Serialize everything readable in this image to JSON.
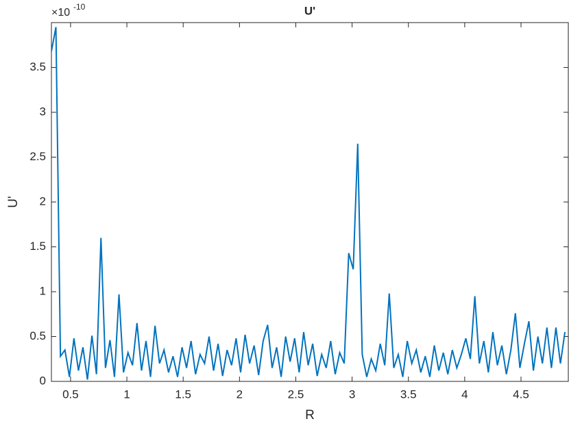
{
  "chart_data": {
    "type": "line",
    "title": "U'",
    "xlabel": "R",
    "ylabel": "U'",
    "y_exponent_base": "×10",
    "y_exponent": "-10",
    "x": [
      0.33,
      0.37,
      0.41,
      0.45,
      0.49,
      0.53,
      0.57,
      0.61,
      0.65,
      0.69,
      0.73,
      0.77,
      0.81,
      0.85,
      0.89,
      0.93,
      0.97,
      1.01,
      1.05,
      1.09,
      1.13,
      1.17,
      1.21,
      1.25,
      1.29,
      1.33,
      1.37,
      1.41,
      1.45,
      1.49,
      1.53,
      1.57,
      1.61,
      1.65,
      1.69,
      1.73,
      1.77,
      1.81,
      1.85,
      1.89,
      1.93,
      1.97,
      2.01,
      2.05,
      2.09,
      2.13,
      2.17,
      2.21,
      2.25,
      2.29,
      2.33,
      2.37,
      2.41,
      2.45,
      2.49,
      2.53,
      2.57,
      2.61,
      2.65,
      2.69,
      2.73,
      2.77,
      2.81,
      2.85,
      2.89,
      2.93,
      2.97,
      3.01,
      3.05,
      3.09,
      3.13,
      3.17,
      3.21,
      3.25,
      3.29,
      3.33,
      3.37,
      3.41,
      3.45,
      3.49,
      3.53,
      3.57,
      3.61,
      3.65,
      3.69,
      3.73,
      3.77,
      3.81,
      3.85,
      3.89,
      3.93,
      3.97,
      4.01,
      4.05,
      4.09,
      4.13,
      4.17,
      4.21,
      4.25,
      4.29,
      4.33,
      4.37,
      4.41,
      4.45,
      4.49,
      4.53,
      4.57,
      4.61,
      4.65,
      4.69,
      4.73,
      4.77,
      4.81,
      4.85,
      4.89
    ],
    "series": [
      {
        "name": "U'",
        "color": "#0072bd",
        "values": [
          3.68,
          3.95,
          0.28,
          0.35,
          0.05,
          0.48,
          0.12,
          0.38,
          0.02,
          0.51,
          0.08,
          1.6,
          0.15,
          0.46,
          0.05,
          0.97,
          0.1,
          0.32,
          0.18,
          0.65,
          0.12,
          0.45,
          0.05,
          0.62,
          0.2,
          0.35,
          0.1,
          0.28,
          0.05,
          0.38,
          0.15,
          0.45,
          0.08,
          0.3,
          0.2,
          0.5,
          0.12,
          0.42,
          0.06,
          0.35,
          0.18,
          0.48,
          0.1,
          0.52,
          0.2,
          0.4,
          0.07,
          0.45,
          0.63,
          0.15,
          0.38,
          0.05,
          0.5,
          0.22,
          0.48,
          0.1,
          0.55,
          0.18,
          0.42,
          0.06,
          0.3,
          0.15,
          0.45,
          0.08,
          0.32,
          0.2,
          1.43,
          1.25,
          2.65,
          0.3,
          0.05,
          0.25,
          0.12,
          0.42,
          0.18,
          0.98,
          0.15,
          0.3,
          0.05,
          0.45,
          0.2,
          0.35,
          0.1,
          0.28,
          0.05,
          0.4,
          0.12,
          0.32,
          0.08,
          0.35,
          0.15,
          0.3,
          0.48,
          0.25,
          0.95,
          0.2,
          0.45,
          0.1,
          0.55,
          0.18,
          0.4,
          0.08,
          0.35,
          0.76,
          0.15,
          0.42,
          0.67,
          0.12,
          0.5,
          0.2,
          0.6,
          0.15,
          0.6,
          0.2,
          0.55
        ]
      }
    ],
    "xlim": [
      0.33,
      4.92
    ],
    "xticks": [
      0.5,
      1,
      1.5,
      2,
      2.5,
      3,
      3.5,
      4,
      4.5
    ],
    "ylim": [
      0,
      4
    ],
    "yticks": [
      0,
      0.5,
      1,
      1.5,
      2,
      2.5,
      3,
      3.5
    ]
  }
}
